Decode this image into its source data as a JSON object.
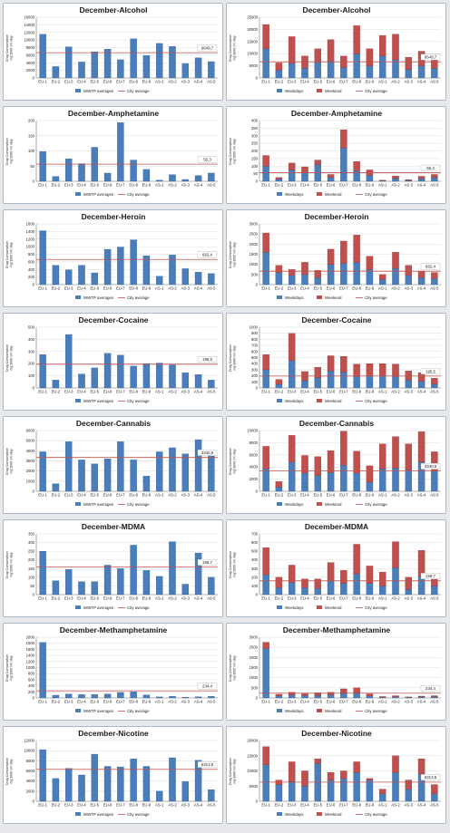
{
  "colors": {
    "blue": "#4a7ebb",
    "blue_dark": "#2b5a94",
    "red": "#c0504d",
    "red_dark": "#8b2e2b",
    "city_line": "#c0504d",
    "axis": "#777777",
    "grid": "#dcdcdc"
  },
  "chart_data": [
    {
      "type": "bar",
      "title": "December-Alcohol",
      "ylabel": "Drug Consumption mg/1000 inh./day",
      "ylim": [
        0,
        16000
      ],
      "yticks": [
        0,
        2000,
        4000,
        6000,
        8000,
        10000,
        12000,
        14000,
        16000
      ],
      "categories": [
        "EU-1",
        "EU-2",
        "EU-3",
        "EU-4",
        "EU-5",
        "EU-6",
        "EU-7",
        "EU-8",
        "EU-9",
        "AS-1",
        "AS-2",
        "AS-3",
        "AS-4",
        "AS-5"
      ],
      "series": [
        {
          "name": "WWTP averages",
          "values": [
            11500,
            3000,
            8200,
            4200,
            6900,
            7600,
            4800,
            10300,
            5900,
            9100,
            8300,
            3800,
            5300,
            4300
          ]
        }
      ],
      "city_average": 6649.7,
      "city_label": "6649,7",
      "legend": [
        "WWTP averages",
        "City average"
      ]
    },
    {
      "type": "stacked-bar",
      "title": "December-Alcohol",
      "ylabel": "Drug Consumption mg/1000 inh./day",
      "ylim": [
        0,
        25000
      ],
      "yticks": [
        0,
        5000,
        10000,
        15000,
        20000,
        25000
      ],
      "categories": [
        "EU-1",
        "EU-2",
        "EU-3",
        "EU-4",
        "EU-5",
        "EU-6",
        "EU-7",
        "EU-8",
        "EU-9",
        "AS-1",
        "AS-2",
        "AS-3",
        "AS-4",
        "AS-5"
      ],
      "series": [
        {
          "name": "Weekdays",
          "values": [
            12000,
            3200,
            6000,
            4000,
            6500,
            7000,
            4300,
            10000,
            5000,
            9000,
            7500,
            3500,
            5000,
            4000
          ]
        },
        {
          "name": "Weekend",
          "values": [
            10000,
            3000,
            11000,
            5000,
            5500,
            8800,
            4700,
            11500,
            7000,
            8500,
            10500,
            5000,
            6000,
            5500
          ]
        }
      ],
      "city_average": 6649.7,
      "city_label": "6649,7",
      "legend": [
        "Weekdays",
        "Weekend",
        "City average"
      ]
    },
    {
      "type": "bar",
      "title": "December-Amphetamine",
      "ylabel": "Drug Consumption mg/1000 inh./day",
      "ylim": [
        0,
        200
      ],
      "yticks": [
        0,
        50,
        100,
        150,
        200
      ],
      "categories": [
        "EU-1",
        "EU-2",
        "EU-3",
        "EU-4",
        "EU-5",
        "EU-6",
        "EU-7",
        "EU-8",
        "EU-9",
        "AS-1",
        "AS-2",
        "AS-3",
        "AS-4",
        "AS-5"
      ],
      "series": [
        {
          "name": "WWTP averages",
          "values": [
            98,
            16,
            74,
            58,
            112,
            27,
            193,
            70,
            39,
            4,
            22,
            6,
            19,
            27
          ]
        }
      ],
      "city_average": 56.3,
      "city_label": "56,3",
      "legend": [
        "WWTP averages",
        "City average"
      ]
    },
    {
      "type": "stacked-bar",
      "title": "December-Amphetamine",
      "ylabel": "Drug Consumption mg/1000 inh./day",
      "ylim": [
        0,
        400
      ],
      "yticks": [
        0,
        50,
        100,
        150,
        200,
        250,
        300,
        350,
        400
      ],
      "categories": [
        "EU-1",
        "EU-2",
        "EU-3",
        "EU-4",
        "EU-5",
        "EU-6",
        "EU-7",
        "EU-8",
        "EU-9",
        "AS-1",
        "AS-2",
        "AS-3",
        "AS-4",
        "AS-5"
      ],
      "series": [
        {
          "name": "Weekdays",
          "values": [
            100,
            15,
            75,
            55,
            110,
            25,
            220,
            70,
            40,
            4,
            20,
            6,
            18,
            25
          ]
        },
        {
          "name": "Weekend",
          "values": [
            70,
            10,
            45,
            40,
            30,
            20,
            120,
            60,
            35,
            3,
            15,
            5,
            15,
            20
          ]
        }
      ],
      "city_average": 56.3,
      "city_label": "56,3",
      "legend": [
        "Weekdays",
        "Weekend",
        "City average"
      ]
    },
    {
      "type": "bar",
      "title": "December-Heroin",
      "ylabel": "Drug Consumption mg/1000 inh./day",
      "ylim": [
        0,
        1600
      ],
      "yticks": [
        0,
        200,
        400,
        600,
        800,
        1000,
        1200,
        1400,
        1600
      ],
      "categories": [
        "EU-1",
        "EU-2",
        "EU-3",
        "EU-4",
        "EU-5",
        "EU-6",
        "EU-7",
        "EU-8",
        "EU-9",
        "AS-1",
        "AS-2",
        "AS-3",
        "AS-4",
        "AS-5"
      ],
      "series": [
        {
          "name": "WWTP averages",
          "values": [
            1420,
            510,
            390,
            510,
            310,
            930,
            990,
            1180,
            760,
            220,
            780,
            420,
            330,
            290
          ]
        }
      ],
      "city_average": 662.4,
      "city_label": "662,4",
      "legend": [
        "WWTP averages",
        "City average"
      ]
    },
    {
      "type": "stacked-bar",
      "title": "December-Heroin",
      "ylabel": "Drug Consumption mg/1000 inh./day",
      "ylim": [
        0,
        3000
      ],
      "yticks": [
        0,
        500,
        1000,
        1500,
        2000,
        2500,
        3000
      ],
      "categories": [
        "EU-1",
        "EU-2",
        "EU-3",
        "EU-4",
        "EU-5",
        "EU-6",
        "EU-7",
        "EU-8",
        "EU-9",
        "AS-1",
        "AS-2",
        "AS-3",
        "AS-4",
        "AS-5"
      ],
      "series": [
        {
          "name": "Weekdays",
          "values": [
            1600,
            600,
            450,
            500,
            350,
            1000,
            1050,
            1100,
            750,
            250,
            800,
            450,
            350,
            300
          ]
        },
        {
          "name": "Weekend",
          "values": [
            950,
            350,
            300,
            600,
            350,
            750,
            1100,
            1350,
            650,
            250,
            800,
            500,
            300,
            300
          ]
        }
      ],
      "city_average": 662.4,
      "city_label": "662,4",
      "legend": [
        "Weekdays",
        "Weekend",
        "City average"
      ]
    },
    {
      "type": "bar",
      "title": "December-Cocaine",
      "ylabel": "Drug Consumption mg/1000 inh./day",
      "ylim": [
        0,
        500
      ],
      "yticks": [
        0,
        100,
        200,
        300,
        400,
        500
      ],
      "categories": [
        "EU-1",
        "EU-2",
        "EU-3",
        "EU-4",
        "EU-5",
        "EU-6",
        "EU-7",
        "EU-8",
        "EU-9",
        "AS-1",
        "AS-2",
        "AS-3",
        "AS-4",
        "AS-5"
      ],
      "series": [
        {
          "name": "WWTP averages",
          "values": [
            275,
            65,
            440,
            115,
            165,
            285,
            270,
            180,
            200,
            205,
            190,
            125,
            110,
            65
          ]
        }
      ],
      "city_average": 195.5,
      "city_label": "195,5",
      "legend": [
        "WWTP averages",
        "City average"
      ]
    },
    {
      "type": "stacked-bar",
      "title": "December-Cocaine",
      "ylabel": "Drug Consumption mg/1000 inh./day",
      "ylim": [
        0,
        1000
      ],
      "yticks": [
        0,
        100,
        200,
        300,
        400,
        500,
        600,
        700,
        800,
        900,
        1000
      ],
      "categories": [
        "EU-1",
        "EU-2",
        "EU-3",
        "EU-4",
        "EU-5",
        "EU-6",
        "EU-7",
        "EU-8",
        "EU-9",
        "AS-1",
        "AS-2",
        "AS-3",
        "AS-4",
        "AS-5"
      ],
      "series": [
        {
          "name": "Weekdays",
          "values": [
            300,
            60,
            450,
            120,
            170,
            280,
            260,
            190,
            200,
            200,
            190,
            130,
            110,
            60
          ]
        },
        {
          "name": "Weekend",
          "values": [
            250,
            80,
            450,
            150,
            170,
            250,
            260,
            200,
            200,
            200,
            200,
            150,
            140,
            100
          ]
        }
      ],
      "city_average": 195.5,
      "city_label": "195,5",
      "legend": [
        "Weekdays",
        "Weekend",
        "City average"
      ]
    },
    {
      "type": "bar",
      "title": "December-Cannabis",
      "ylabel": "Drug Consumption mg/1000 inh./day",
      "ylim": [
        0,
        6000
      ],
      "yticks": [
        0,
        1000,
        2000,
        3000,
        4000,
        5000,
        6000
      ],
      "categories": [
        "EU-1",
        "EU-2",
        "EU-3",
        "EU-4",
        "EU-5",
        "EU-6",
        "EU-7",
        "EU-8",
        "EU-9",
        "AS-1",
        "AS-2",
        "AS-3",
        "AS-4",
        "AS-5"
      ],
      "series": [
        {
          "name": "WWTP averages",
          "values": [
            3900,
            750,
            4900,
            3100,
            2700,
            3200,
            4900,
            3100,
            1500,
            3900,
            4300,
            3700,
            5100,
            3500
          ]
        }
      ],
      "city_average": 3340.9,
      "city_label": "3340,9",
      "legend": [
        "WWTP averages",
        "City average"
      ]
    },
    {
      "type": "stacked-bar",
      "title": "December-Cannabis",
      "ylabel": "Drug Consumption mg/1000 inh./day",
      "ylim": [
        0,
        10000
      ],
      "yticks": [
        0,
        2000,
        4000,
        6000,
        8000,
        10000
      ],
      "categories": [
        "EU-1",
        "EU-2",
        "EU-3",
        "EU-4",
        "EU-5",
        "EU-6",
        "EU-7",
        "EU-8",
        "EU-9",
        "AS-1",
        "AS-2",
        "AS-3",
        "AS-4",
        "AS-5"
      ],
      "series": [
        {
          "name": "Weekdays",
          "values": [
            3700,
            700,
            4800,
            3000,
            2600,
            3100,
            4300,
            3000,
            1500,
            3700,
            3800,
            3500,
            4800,
            3300
          ]
        },
        {
          "name": "Weekend",
          "values": [
            3700,
            900,
            4400,
            2900,
            3100,
            3600,
            5600,
            3600,
            2700,
            4100,
            5200,
            4300,
            5000,
            3200
          ]
        }
      ],
      "city_average": 3340.9,
      "city_label": "3340,9",
      "legend": [
        "Weekdays",
        "Weekend",
        "City average"
      ]
    },
    {
      "type": "bar",
      "title": "December-MDMA",
      "ylabel": "Drug Consumption mg/1000 inh./day",
      "ylim": [
        0,
        350
      ],
      "yticks": [
        0,
        50,
        100,
        150,
        200,
        250,
        300,
        350
      ],
      "categories": [
        "EU-1",
        "EU-2",
        "EU-3",
        "EU-4",
        "EU-5",
        "EU-6",
        "EU-7",
        "EU-8",
        "EU-9",
        "AS-1",
        "AS-2",
        "AS-3",
        "AS-4",
        "AS-5"
      ],
      "series": [
        {
          "name": "WWTP averages",
          "values": [
            250,
            80,
            145,
            75,
            75,
            170,
            150,
            285,
            140,
            105,
            305,
            60,
            240,
            100
          ]
        }
      ],
      "city_average": 158.7,
      "city_label": "158,7",
      "legend": [
        "WWTP averages",
        "City average"
      ]
    },
    {
      "type": "stacked-bar",
      "title": "December-MDMA",
      "ylabel": "Drug Consumption mg/1000 inh./day",
      "ylim": [
        0,
        700
      ],
      "yticks": [
        0,
        100,
        200,
        300,
        400,
        500,
        600,
        700
      ],
      "categories": [
        "EU-1",
        "EU-2",
        "EU-3",
        "EU-4",
        "EU-5",
        "EU-6",
        "EU-7",
        "EU-8",
        "EU-9",
        "AS-1",
        "AS-2",
        "AS-3",
        "AS-4",
        "AS-5"
      ],
      "series": [
        {
          "name": "Weekdays",
          "values": [
            230,
            80,
            140,
            80,
            70,
            160,
            130,
            240,
            130,
            100,
            310,
            60,
            210,
            100
          ]
        },
        {
          "name": "Weekend",
          "values": [
            310,
            120,
            200,
            100,
            110,
            210,
            150,
            340,
            200,
            160,
            300,
            140,
            300,
            100
          ]
        }
      ],
      "city_average": 158.7,
      "city_label": "158,7",
      "legend": [
        "Weekdays",
        "Weekend",
        "City average"
      ]
    },
    {
      "type": "bar",
      "title": "December-Methamphetamine",
      "ylabel": "Drug Consumption mg/1000 inh./day",
      "ylim": [
        0,
        2000
      ],
      "yticks": [
        0,
        200,
        400,
        600,
        800,
        1000,
        1200,
        1400,
        1600,
        1800,
        2000
      ],
      "categories": [
        "EU-1",
        "EU-2",
        "EU-3",
        "EU-4",
        "EU-5",
        "EU-6",
        "EU-7",
        "EU-8",
        "EU-9",
        "AS-1",
        "AS-2",
        "AS-3",
        "AS-4",
        "AS-5"
      ],
      "series": [
        {
          "name": "WWTP averages",
          "values": [
            1830,
            90,
            130,
            110,
            110,
            130,
            180,
            200,
            100,
            35,
            55,
            25,
            40,
            55
          ]
        }
      ],
      "city_average": 234.4,
      "city_label": "234,4",
      "legend": [
        "WWTP averages",
        "City average"
      ]
    },
    {
      "type": "stacked-bar",
      "title": "December-Methamphetamine",
      "ylabel": "Drug Consumption mg/1000 inh./day",
      "ylim": [
        0,
        3000
      ],
      "yticks": [
        0,
        500,
        1000,
        1500,
        2000,
        2500,
        3000
      ],
      "categories": [
        "EU-1",
        "EU-2",
        "EU-3",
        "EU-4",
        "EU-5",
        "EU-6",
        "EU-7",
        "EU-8",
        "EU-9",
        "AS-1",
        "AS-2",
        "AS-3",
        "AS-4",
        "AS-5"
      ],
      "series": [
        {
          "name": "Weekdays",
          "values": [
            2450,
            100,
            150,
            120,
            130,
            150,
            250,
            250,
            100,
            40,
            60,
            30,
            50,
            60
          ]
        },
        {
          "name": "Weekend",
          "values": [
            300,
            80,
            130,
            110,
            130,
            130,
            200,
            250,
            100,
            30,
            50,
            20,
            40,
            50
          ]
        }
      ],
      "city_average": 234.4,
      "city_label": "234,4",
      "legend": [
        "Weekdays",
        "Weekend",
        "City average"
      ]
    },
    {
      "type": "bar",
      "title": "December-Nicotine",
      "ylabel": "Drug Consumption mg/1000 inh./day",
      "ylim": [
        0,
        12000
      ],
      "yticks": [
        0,
        2000,
        4000,
        6000,
        8000,
        10000,
        12000
      ],
      "categories": [
        "EU-1",
        "EU-2",
        "EU-3",
        "EU-4",
        "EU-5",
        "EU-6",
        "EU-7",
        "EU-8",
        "EU-9",
        "AS-1",
        "AS-2",
        "AS-3",
        "AS-4",
        "AS-5"
      ],
      "series": [
        {
          "name": "WWTP averages",
          "values": [
            10200,
            4500,
            6500,
            5200,
            9300,
            6900,
            6800,
            8400,
            6900,
            2000,
            8600,
            3900,
            8100,
            2300
          ]
        }
      ],
      "city_average": 6313.5,
      "city_label": "6313,5",
      "legend": [
        "WWTP averages",
        "City average"
      ]
    },
    {
      "type": "stacked-bar",
      "title": "December-Nicotine",
      "ylabel": "Drug Consumption mg/1000 inh./day",
      "ylim": [
        0,
        20000
      ],
      "yticks": [
        0,
        5000,
        10000,
        15000,
        20000
      ],
      "categories": [
        "EU-1",
        "EU-2",
        "EU-3",
        "EU-4",
        "EU-5",
        "EU-6",
        "EU-7",
        "EU-8",
        "EU-9",
        "AS-1",
        "AS-2",
        "AS-3",
        "AS-4",
        "AS-5"
      ],
      "series": [
        {
          "name": "Weekdays",
          "values": [
            12000,
            5500,
            6500,
            5000,
            12500,
            7000,
            7500,
            9500,
            7000,
            2500,
            9500,
            4000,
            9000,
            2500
          ]
        },
        {
          "name": "Weekend",
          "values": [
            6000,
            1500,
            6500,
            5000,
            1500,
            2500,
            2500,
            3500,
            500,
            1500,
            5500,
            3000,
            5000,
            3000
          ]
        }
      ],
      "city_average": 6313.5,
      "city_label": "6313,5",
      "legend": [
        "Weekdays",
        "Weekend",
        "City average"
      ]
    }
  ]
}
